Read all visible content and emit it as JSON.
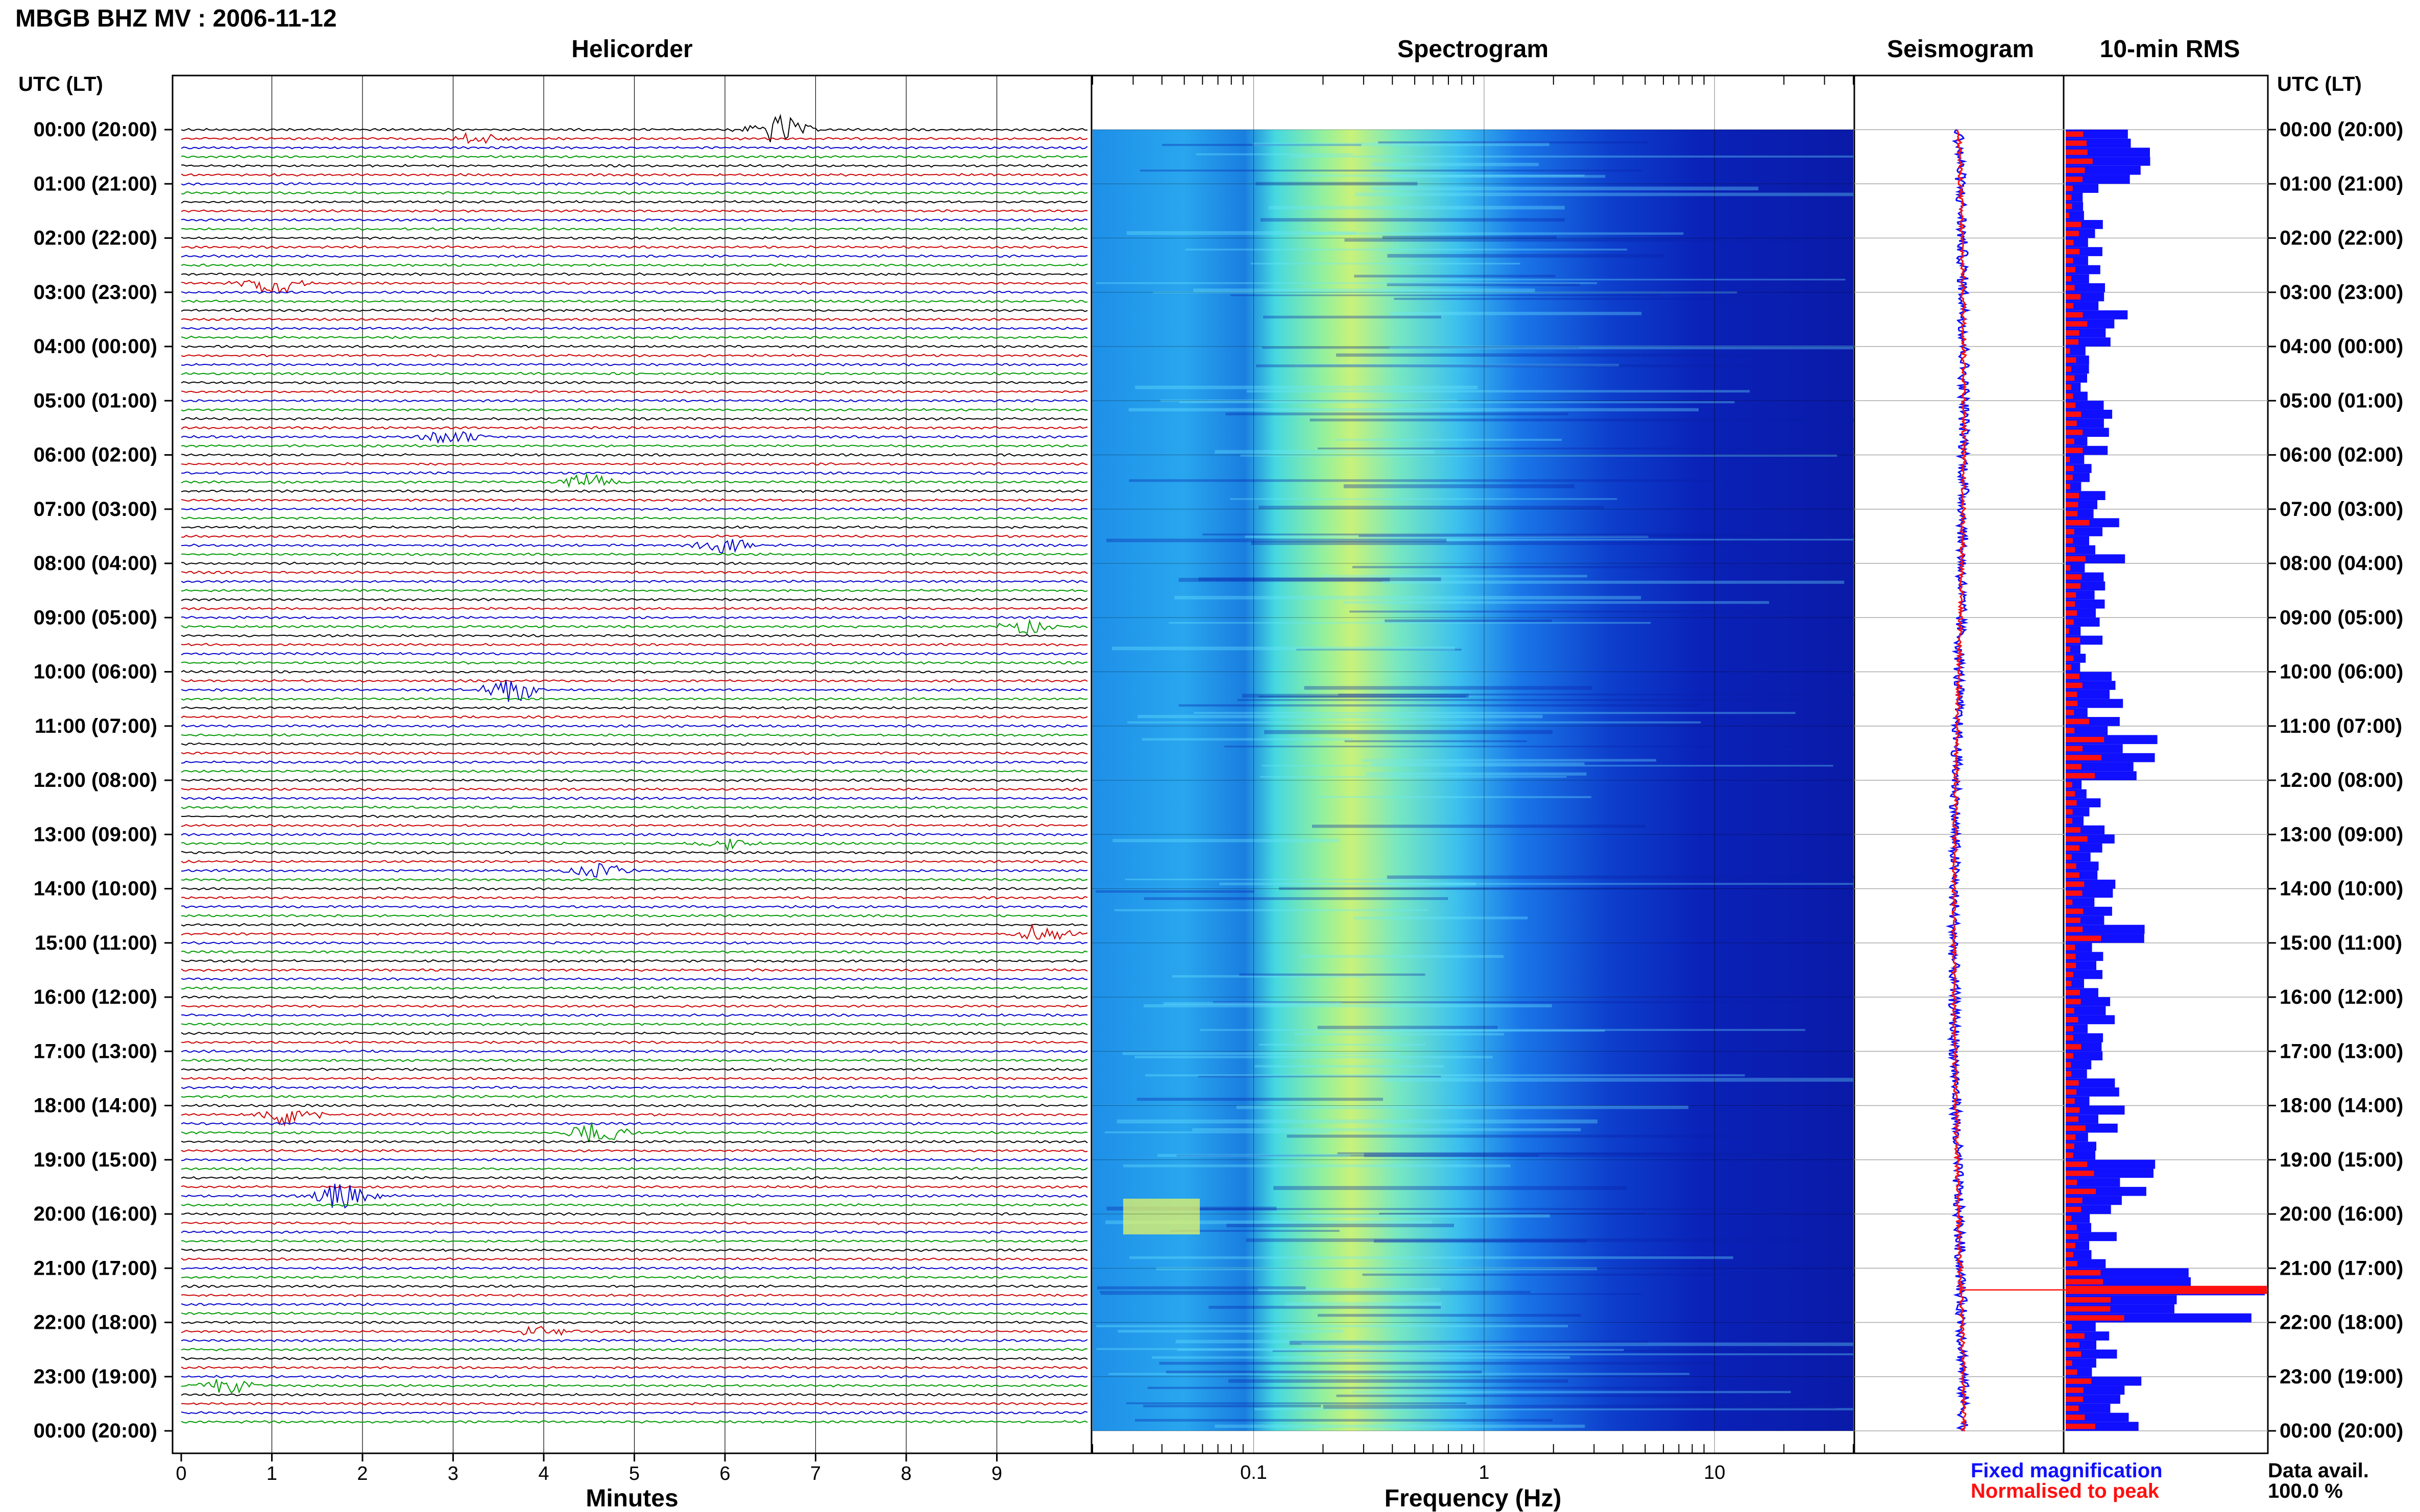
{
  "header": {
    "station_title": "MBGB BHZ MV : 2006-11-12",
    "utc_label_left": "UTC (LT)",
    "utc_label_right": "UTC (LT)"
  },
  "panels": {
    "helicorder_title": "Helicorder",
    "spectrogram_title": "Spectrogram",
    "seismogram_title": "Seismogram",
    "rms_title": "10-min RMS"
  },
  "axes": {
    "helicorder_xlabel": "Minutes",
    "spectrogram_xlabel": "Frequency (Hz)",
    "minute_ticks": [
      "0",
      "1",
      "2",
      "3",
      "4",
      "5",
      "6",
      "7",
      "8",
      "9"
    ],
    "frequency_ticks": [
      "0.1",
      "1",
      "10"
    ]
  },
  "time_labels": [
    "00:00 (20:00)",
    "01:00 (21:00)",
    "02:00 (22:00)",
    "03:00 (23:00)",
    "04:00 (00:00)",
    "05:00 (01:00)",
    "06:00 (02:00)",
    "07:00 (03:00)",
    "08:00 (04:00)",
    "09:00 (05:00)",
    "10:00 (06:00)",
    "11:00 (07:00)",
    "12:00 (08:00)",
    "13:00 (09:00)",
    "14:00 (10:00)",
    "15:00 (11:00)",
    "16:00 (12:00)",
    "17:00 (13:00)",
    "18:00 (14:00)",
    "19:00 (15:00)",
    "20:00 (16:00)",
    "21:00 (17:00)",
    "22:00 (18:00)",
    "23:00 (19:00)",
    "00:00 (20:00)"
  ],
  "legend": {
    "fixed_magnification": "Fixed magnification",
    "normalised_to_peak": "Normalised to peak",
    "fixed_color": "#1010ff",
    "normalised_color": "#ff1010",
    "data_avail_label": "Data avail.",
    "data_avail_value": "100.0 %"
  },
  "colors": {
    "trace_cycle": [
      "#000000",
      "#cc0000",
      "#0000cc",
      "#009900"
    ],
    "spectrogram_low": "#00008b",
    "spectrogram_high": "#ffff66",
    "rms_blue": "#1010ff",
    "rms_red": "#ff1010"
  },
  "chart_data": [
    {
      "type": "line",
      "title": "Helicorder",
      "xlabel": "Minutes",
      "xlim": [
        0,
        10
      ],
      "rows_per_hour": 6,
      "row_count": 144,
      "events": [
        {
          "time": "00:00",
          "minute": 6.6,
          "amplitude": 1.0
        },
        {
          "time": "00:10",
          "minute": 3.3,
          "amplitude": 0.4
        },
        {
          "time": "02:50",
          "minute": 1.0,
          "amplitude": 0.8
        },
        {
          "time": "05:40",
          "minute": 3.0,
          "amplitude": 0.5
        },
        {
          "time": "06:30",
          "minute": 4.5,
          "amplitude": 0.6
        },
        {
          "time": "07:40",
          "minute": 6.0,
          "amplitude": 0.5
        },
        {
          "time": "09:10",
          "minute": 9.3,
          "amplitude": 0.5
        },
        {
          "time": "10:20",
          "minute": 3.6,
          "amplitude": 0.9
        },
        {
          "time": "13:10",
          "minute": 6.0,
          "amplitude": 0.4
        },
        {
          "time": "13:40",
          "minute": 4.6,
          "amplitude": 0.5
        },
        {
          "time": "14:50",
          "minute": 9.5,
          "amplitude": 0.6
        },
        {
          "time": "18:10",
          "minute": 1.2,
          "amplitude": 0.8
        },
        {
          "time": "18:30",
          "minute": 4.6,
          "amplitude": 0.8
        },
        {
          "time": "19:40",
          "minute": 1.8,
          "amplitude": 1.0
        },
        {
          "time": "22:10",
          "minute": 4.0,
          "amplitude": 0.4
        },
        {
          "time": "23:10",
          "minute": 0.5,
          "amplitude": 0.5
        }
      ]
    },
    {
      "type": "heatmap",
      "title": "Spectrogram",
      "xlabel": "Frequency (Hz)",
      "xscale": "log",
      "xlim": [
        0.02,
        40
      ],
      "xticks": [
        0.1,
        1,
        10
      ],
      "ylim_hours": [
        0,
        24
      ]
    },
    {
      "type": "line",
      "title": "Seismogram",
      "series": [
        {
          "name": "Fixed magnification"
        },
        {
          "name": "Normalised to peak"
        }
      ]
    },
    {
      "type": "bar",
      "title": "10-min RMS",
      "orientation": "horizontal",
      "hour_values": [
        0.45,
        0.2,
        0.2,
        0.38,
        0.15,
        0.25,
        0.2,
        0.3,
        0.25,
        0.2,
        0.3,
        0.5,
        0.2,
        0.25,
        0.4,
        0.2,
        0.25,
        0.3,
        0.3,
        0.5,
        0.3,
        1.0,
        0.3,
        0.4
      ],
      "peak_hour": 21.4
    }
  ]
}
